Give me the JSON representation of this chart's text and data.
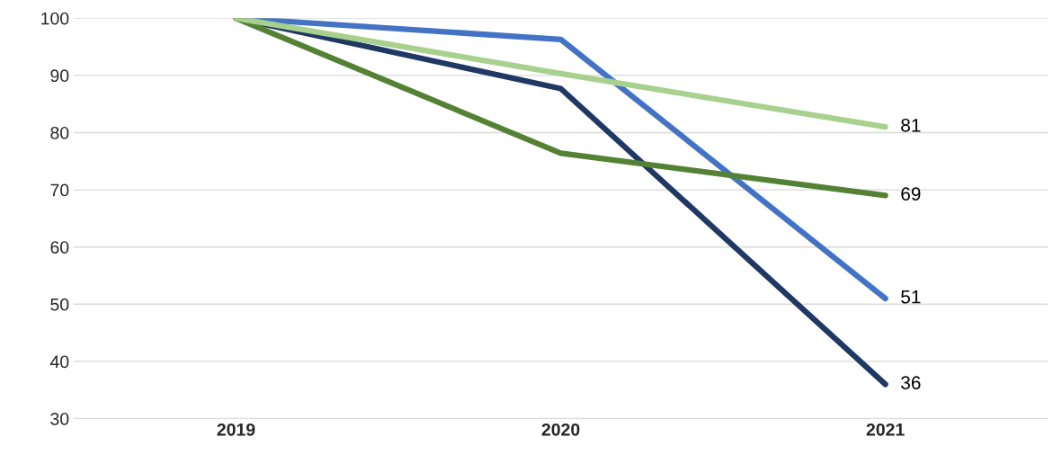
{
  "chart_data": {
    "type": "line",
    "categories": [
      "2019",
      "2020",
      "2021"
    ],
    "series": [
      {
        "color": "#203864",
        "values": [
          100,
          87.7,
          36
        ],
        "value_labels": [
          null,
          null,
          "36"
        ]
      },
      {
        "color": "#4472c4",
        "values": [
          100,
          96.3,
          51
        ],
        "value_labels": [
          null,
          null,
          "51"
        ]
      },
      {
        "color": "#548235",
        "values": [
          100,
          76.4,
          69
        ],
        "value_labels": [
          null,
          null,
          "69"
        ]
      },
      {
        "color": "#a9d18e",
        "values": [
          100,
          90.3,
          81
        ],
        "value_labels": [
          null,
          null,
          "81"
        ]
      }
    ],
    "ylim": [
      30,
      100
    ],
    "yticks": [
      30,
      40,
      50,
      60,
      70,
      80,
      90,
      100
    ],
    "grid": "y",
    "legend": false,
    "marker": "none",
    "line_style": "solid"
  }
}
